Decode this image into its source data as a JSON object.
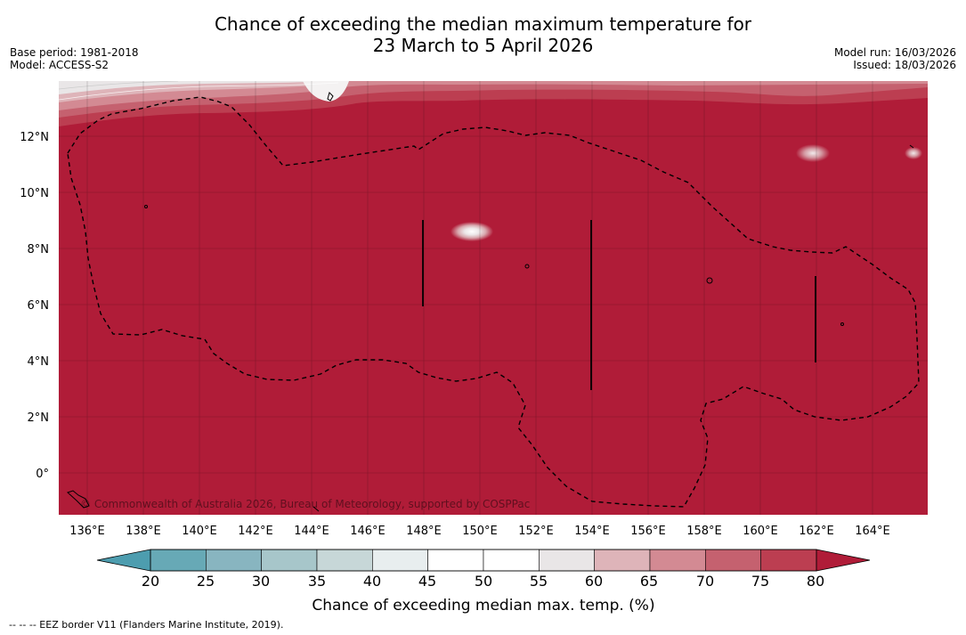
{
  "title": {
    "line1": "Chance of exceeding the median maximum temperature for",
    "line2": "23 March to 5 April 2026"
  },
  "meta_left": {
    "base_period": "Base period: 1981-2018",
    "model": "Model: ACCESS-S2"
  },
  "meta_right": {
    "model_run": "Model run: 16/03/2026",
    "issued": "Issued: 18/03/2026"
  },
  "map": {
    "lat_labels": [
      "12°N",
      "10°N",
      "8°N",
      "6°N",
      "4°N",
      "2°N",
      "0°"
    ],
    "lon_labels": [
      "136°E",
      "138°E",
      "140°E",
      "142°E",
      "144°E",
      "146°E",
      "148°E",
      "150°E",
      "152°E",
      "154°E",
      "156°E",
      "158°E",
      "160°E",
      "162°E",
      "164°E"
    ],
    "copyright": "© Commonwealth of Australia 2026, Bureau of Meteorology, supported by COSPPac",
    "dominant_fill_color": "#b01c38"
  },
  "colorbar": {
    "ticks": [
      "20",
      "25",
      "30",
      "35",
      "40",
      "45",
      "50",
      "55",
      "60",
      "65",
      "70",
      "75",
      "80"
    ],
    "colors": [
      "#67a9b6",
      "#88b5c0",
      "#a7c6ca",
      "#c7d7d8",
      "#e8eeef",
      "#ffffff",
      "#ffffff",
      "#e9e6e7",
      "#deb4b9",
      "#d38a93",
      "#c5616f",
      "#bc3e51"
    ],
    "under_color": "#4d9daf",
    "over_color": "#b01c38",
    "label": "Chance of exceeding median max. temp. (%)"
  },
  "footer": {
    "eez_note": "--  --  -- EEZ border V11 (Flanders Marine Institute, 2019)."
  }
}
